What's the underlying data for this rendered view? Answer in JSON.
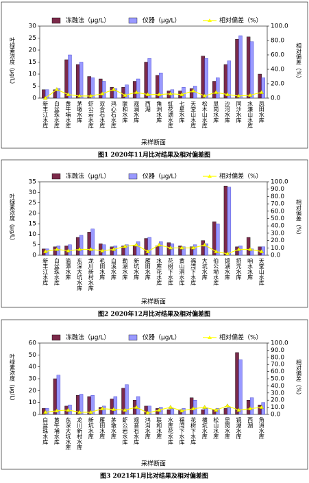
{
  "chart_data": [
    {
      "type": "bar",
      "title": "图1 2020年11月比对结果及相对偏差图",
      "y_label": "叶绿素浓度（μg/L）",
      "y2_label": "相对偏差（%）",
      "x_label": "采样断面",
      "categories": [
        "新丰江水库",
        "白盆珠水库",
        "黄牛埔水库",
        "茅墩水库",
        "虾公岩水库",
        "双合石水库",
        "鸿心石水库",
        "联和水库",
        "观澜水库",
        "西湖",
        "角洲水库",
        "虹花湖水库",
        "七星水库",
        "天堂山水库",
        "松木山水库",
        "显岗水库",
        "沙河水库",
        "同沙水库",
        "水濂山水库",
        "凤田水库"
      ],
      "series": [
        {
          "name": "冻融法（μg/L）",
          "color": "#7b2a4a",
          "values": [
            3.5,
            3.5,
            16,
            14,
            9,
            8,
            4.5,
            4.5,
            7,
            15,
            9.5,
            3,
            3,
            4,
            17.5,
            7,
            14,
            24.5,
            25.5,
            10
          ]
        },
        {
          "name": "仪器（μg/L）",
          "color": "#9999ff",
          "values": [
            3.5,
            4,
            18,
            15,
            8.5,
            7,
            4,
            5.5,
            8,
            16.5,
            10.5,
            3.5,
            4.5,
            5,
            16.5,
            8.5,
            15.5,
            26,
            23.5,
            8.5
          ]
        },
        {
          "name": "相对偏差（%）",
          "color": "#ffff00",
          "type": "line",
          "axis": "y2",
          "values": [
            0,
            12,
            5,
            3,
            3,
            6,
            12,
            4,
            8,
            5,
            5,
            6,
            5,
            10,
            3,
            8,
            5,
            3,
            4,
            8
          ]
        }
      ],
      "ylim": [
        0,
        30
      ],
      "yticks": [
        0,
        5,
        10,
        15,
        20,
        25,
        30
      ],
      "y2lim": [
        0,
        100
      ],
      "y2ticks": [
        {
          "value": 0,
          "label": "0.0"
        },
        {
          "value": 20,
          "label": "20.0"
        },
        {
          "value": 40,
          "label": "40.0"
        },
        {
          "value": 60,
          "label": "60.0"
        },
        {
          "value": 80,
          "label": "80.0"
        },
        {
          "value": 100,
          "label": "100.0"
        }
      ]
    },
    {
      "type": "bar",
      "title": "图2 2020年12月比对结果及相对偏差图",
      "y_label": "叶绿素浓度（μg/L）",
      "y2_label": "相对偏差（%）",
      "x_label": "采样断面",
      "categories": [
        "新丰江水库",
        "白盆珠水库",
        "渝潭水库",
        "东深大坑水库",
        "龙川新村水库",
        "毛田水库",
        "白溪水库",
        "勒湖水库",
        "新坑水库",
        "雁田水库",
        "水库花水库",
        "花树下水库",
        "黄山洞水库",
        "福湾下水库",
        "大坑水库",
        "伯公坳水库",
        "镜湖水库",
        "招元水库",
        "响水水库",
        "天堂山水库"
      ],
      "series": [
        {
          "name": "冻融法（μg/L）",
          "color": "#7b2a4a",
          "values": [
            3,
            4,
            4.5,
            8.5,
            11,
            5.5,
            4,
            4.5,
            4.5,
            8,
            4.5,
            6,
            4.5,
            4,
            7,
            16,
            33,
            4,
            8.5,
            4
          ]
        },
        {
          "name": "仪器（μg/L）",
          "color": "#9999ff",
          "values": [
            3,
            4.5,
            5,
            9.5,
            12.5,
            5,
            4.5,
            5,
            6.5,
            8.5,
            6.5,
            5.5,
            4,
            5,
            5.5,
            15,
            32.5,
            4.5,
            3,
            4
          ]
        },
        {
          "name": "相对偏差（%）",
          "color": "#ffff00",
          "type": "line",
          "axis": "y2",
          "values": [
            5,
            8,
            6,
            8,
            8,
            6,
            8,
            12,
            14,
            5,
            14,
            10,
            10,
            10,
            14,
            5,
            2,
            8,
            8,
            5
          ]
        }
      ],
      "ylim": [
        0,
        35
      ],
      "yticks": [
        0,
        5,
        10,
        15,
        20,
        25,
        30,
        35
      ],
      "y2lim": [
        0,
        100
      ],
      "y2ticks": [
        {
          "value": 0,
          "label": "0.0"
        },
        {
          "value": 10,
          "label": "10.0"
        },
        {
          "value": 20,
          "label": "20.0"
        },
        {
          "value": 30,
          "label": "30.0"
        },
        {
          "value": 40,
          "label": "40.0"
        },
        {
          "value": 50,
          "label": "50.0"
        },
        {
          "value": 60,
          "label": "60.0"
        },
        {
          "value": 70,
          "label": "70.0"
        },
        {
          "value": 80,
          "label": "80.0"
        },
        {
          "value": 90,
          "label": "90.0"
        },
        {
          "value": 100,
          "label": "100.0"
        }
      ]
    },
    {
      "type": "bar",
      "title": "图3 2021年1月比对结果及相对偏差图",
      "y_label": "叶绿素浓度（μg/L）",
      "y2_label": "相对偏差（%）",
      "x_label": "采样断面",
      "categories": [
        "白盆珠水库",
        "黄牛埔水库",
        "东深大坑水库",
        "龙川新村水库",
        "新坑水库",
        "雁田水库",
        "茅墩水库",
        "虾公岩水库",
        "观音石水库",
        "鸿沟水库",
        "联和水库",
        "水库花水库",
        "福湾下水库",
        "花树下水库",
        "横坑水库",
        "松山水库",
        "显岗水库",
        "镜湖水库",
        "西湖",
        "角洲水库"
      ],
      "series": [
        {
          "name": "冻融法（μg/L）",
          "color": "#7b2a4a",
          "values": [
            5,
            30,
            7,
            16,
            15,
            6,
            13,
            22,
            12,
            7,
            5,
            4,
            4,
            14,
            4,
            4,
            5,
            52,
            12,
            8
          ]
        },
        {
          "name": "仪器（μg/L）",
          "color": "#9999ff",
          "values": [
            5,
            33,
            8,
            17,
            16,
            7,
            15,
            25,
            15,
            7,
            6,
            5,
            5,
            12,
            5,
            5,
            6,
            46,
            14,
            10
          ]
        },
        {
          "name": "相对偏差（%）",
          "color": "#ffff00",
          "type": "line",
          "axis": "y2",
          "values": [
            3,
            5,
            6,
            3,
            3,
            8,
            7,
            6,
            10,
            2,
            6,
            10,
            5,
            8,
            10,
            6,
            12,
            6,
            8,
            10
          ]
        }
      ],
      "ylim": [
        0,
        60
      ],
      "yticks": [
        0,
        10,
        20,
        30,
        40,
        50,
        60
      ],
      "y2lim": [
        0,
        100
      ],
      "y2ticks": [
        {
          "value": 0,
          "label": "0.0"
        },
        {
          "value": 10,
          "label": "10.0"
        },
        {
          "value": 20,
          "label": "20.0"
        },
        {
          "value": 30,
          "label": "30.0"
        },
        {
          "value": 40,
          "label": "40.0"
        },
        {
          "value": 50,
          "label": "50.0"
        },
        {
          "value": 60,
          "label": "60.0"
        },
        {
          "value": 70,
          "label": "70.0"
        },
        {
          "value": 80,
          "label": "80.0"
        },
        {
          "value": 90,
          "label": "90.0"
        },
        {
          "value": 100,
          "label": "100.0"
        }
      ]
    }
  ]
}
